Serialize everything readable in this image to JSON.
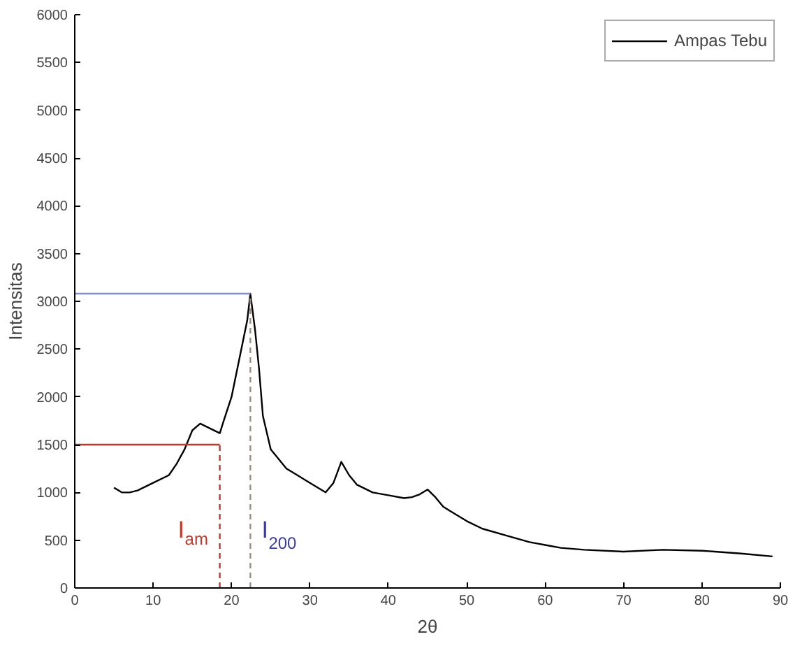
{
  "chart_data": {
    "type": "line",
    "xlabel": "2θ",
    "ylabel": "Intensitas",
    "xlim": [
      0,
      90
    ],
    "xticks": [
      0,
      10,
      20,
      30,
      40,
      50,
      60,
      70,
      80,
      90
    ],
    "ylim": [
      0,
      6000
    ],
    "yticks": [
      0,
      500,
      1000,
      1500,
      2000,
      2500,
      3000,
      3500,
      4000,
      4500,
      5000,
      5500,
      6000
    ],
    "grid": false,
    "legend": "top right",
    "marker": "none",
    "series": [
      {
        "name": "Ampas Tebu",
        "color": "#000000",
        "line_style": "solid",
        "x": [
          5,
          6,
          7,
          8,
          10,
          12,
          13,
          14,
          15,
          16,
          17,
          18,
          18.5,
          19,
          20,
          21,
          22,
          22.4,
          23,
          23.5,
          24,
          25,
          26,
          27,
          28,
          30,
          32,
          33,
          34,
          35,
          36,
          38,
          40,
          42,
          43,
          44,
          45,
          46,
          47,
          48,
          50,
          52,
          55,
          58,
          60,
          62,
          65,
          70,
          75,
          80,
          85,
          89
        ],
        "values": [
          1050,
          1000,
          1000,
          1020,
          1100,
          1180,
          1300,
          1450,
          1650,
          1720,
          1680,
          1640,
          1620,
          1750,
          2000,
          2400,
          2800,
          3080,
          2700,
          2300,
          1800,
          1450,
          1350,
          1250,
          1200,
          1100,
          1000,
          1100,
          1320,
          1180,
          1080,
          1000,
          970,
          940,
          950,
          980,
          1030,
          950,
          850,
          800,
          700,
          620,
          550,
          480,
          450,
          420,
          400,
          380,
          400,
          390,
          360,
          330
        ]
      },
      {
        "color": "#c0392b",
        "line_style": "solid",
        "x": [
          0,
          18.5
        ],
        "values": [
          1500,
          1500
        ]
      },
      {
        "color": "#c0392b",
        "line_style": "dashed",
        "x": [
          18.5,
          18.5
        ],
        "values": [
          0,
          1500
        ]
      },
      {
        "color": "#7f8fd0",
        "line_style": "solid",
        "x": [
          0,
          22.4
        ],
        "values": [
          3080,
          3080
        ]
      },
      {
        "color": "#9a8f80",
        "line_style": "dashed",
        "x": [
          22.4,
          22.4
        ],
        "values": [
          0,
          3080
        ]
      }
    ],
    "annotations": [
      "I$_{am}$",
      "I$_{200}$"
    ]
  }
}
